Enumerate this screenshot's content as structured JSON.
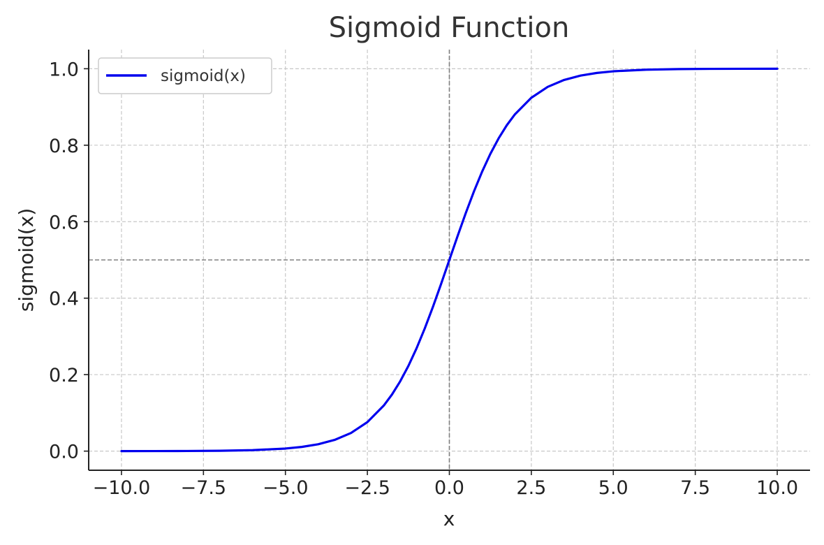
{
  "chart_data": {
    "type": "line",
    "title": "Sigmoid Function",
    "xlabel": "x",
    "ylabel": "sigmoid(x)",
    "xlim": [
      -11,
      11
    ],
    "ylim": [
      -0.05,
      1.05
    ],
    "x_ticks": [
      -10,
      -7.5,
      -5,
      -2.5,
      0,
      2.5,
      5,
      7.5,
      10
    ],
    "x_tick_labels": [
      "−10.0",
      "−7.5",
      "−5.0",
      "−2.5",
      "0.0",
      "2.5",
      "5.0",
      "7.5",
      "10.0"
    ],
    "y_ticks": [
      0,
      0.2,
      0.4,
      0.6,
      0.8,
      1.0
    ],
    "y_tick_labels": [
      "0.0",
      "0.2",
      "0.4",
      "0.6",
      "0.8",
      "1.0"
    ],
    "grid": true,
    "legend_position": "top-left",
    "reference_lines": {
      "vertical_x": 0,
      "horizontal_y": 0.5
    },
    "series": [
      {
        "name": "sigmoid(x)",
        "color": "#0000ee",
        "x": [
          -10,
          -9,
          -8,
          -7,
          -6,
          -5,
          -4.5,
          -4,
          -3.5,
          -3,
          -2.5,
          -2,
          -1.75,
          -1.5,
          -1.25,
          -1,
          -0.75,
          -0.5,
          -0.25,
          0,
          0.25,
          0.5,
          0.75,
          1,
          1.25,
          1.5,
          1.75,
          2,
          2.5,
          3,
          3.5,
          4,
          4.5,
          5,
          6,
          7,
          8,
          9,
          10
        ],
        "y": [
          4.54e-05,
          0.0001234,
          0.0003354,
          0.0009111,
          0.0024726,
          0.0066929,
          0.0109869,
          0.0179862,
          0.0293122,
          0.0474259,
          0.0758582,
          0.1192029,
          0.1480472,
          0.1824255,
          0.2227001,
          0.2689414,
          0.3208213,
          0.3775407,
          0.4378235,
          0.5,
          0.5621765,
          0.6224593,
          0.6791787,
          0.7310586,
          0.7772999,
          0.8175745,
          0.8519528,
          0.8807971,
          0.9241418,
          0.9525741,
          0.9706878,
          0.9820138,
          0.9890131,
          0.9933071,
          0.9975274,
          0.9990889,
          0.9996646,
          0.9998766,
          0.9999546
        ]
      }
    ]
  }
}
